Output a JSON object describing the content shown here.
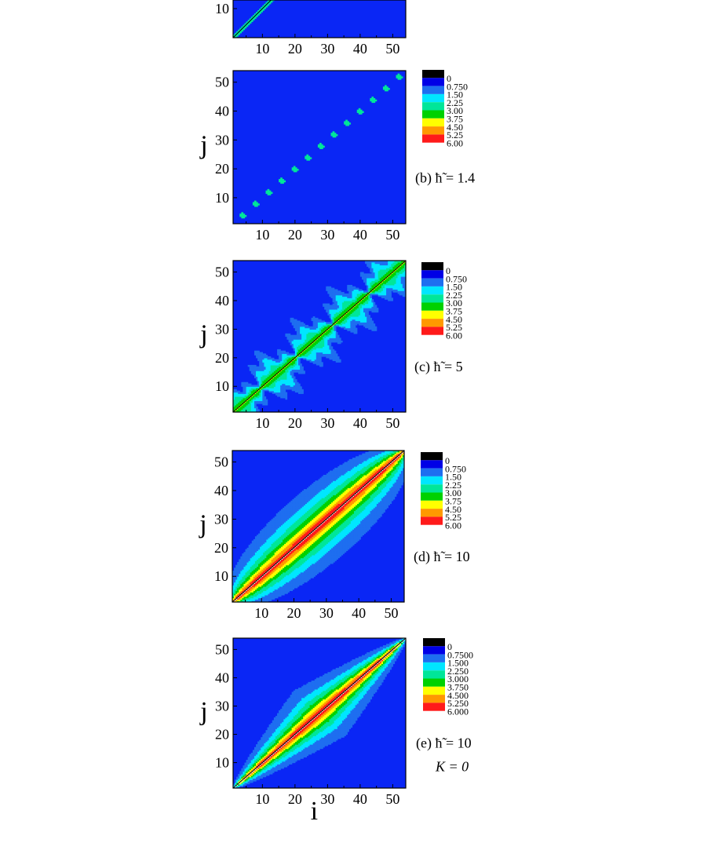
{
  "chart_data": [
    {
      "type": "heatmap",
      "xlabel": "",
      "ylabel": "",
      "x_ticks": [
        "10",
        "20",
        "30",
        "40",
        "50"
      ],
      "y_ticks": [
        "10"
      ],
      "xlim": [
        1,
        54
      ],
      "ylim": [
        1,
        54
      ],
      "legend": null,
      "pattern": "diagonal-narrow",
      "caption": ""
    },
    {
      "type": "heatmap",
      "xlabel": "",
      "ylabel": "j",
      "x_ticks": [
        "10",
        "20",
        "30",
        "40",
        "50"
      ],
      "y_ticks": [
        "10",
        "20",
        "30",
        "40",
        "50"
      ],
      "xlim": [
        1,
        54
      ],
      "ylim": [
        1,
        54
      ],
      "legend": [
        "0",
        "0.750",
        "1.50",
        "2.25",
        "3.00",
        "3.75",
        "4.50",
        "5.25",
        "6.00"
      ],
      "pattern": "sparse-diagonal-dots",
      "caption": "(b) ħ̃ = 1.4"
    },
    {
      "type": "heatmap",
      "xlabel": "",
      "ylabel": "j",
      "x_ticks": [
        "10",
        "20",
        "30",
        "40",
        "50"
      ],
      "y_ticks": [
        "10",
        "20",
        "30",
        "40",
        "50"
      ],
      "xlim": [
        1,
        54
      ],
      "ylim": [
        1,
        54
      ],
      "legend": [
        "0",
        "0.750",
        "1.50",
        "2.25",
        "3.00",
        "3.75",
        "4.50",
        "5.25",
        "6.00"
      ],
      "pattern": "diagonal-blotchy-band",
      "caption": "(c) ħ̃ = 5"
    },
    {
      "type": "heatmap",
      "xlabel": "",
      "ylabel": "j",
      "x_ticks": [
        "10",
        "20",
        "30",
        "40",
        "50"
      ],
      "y_ticks": [
        "10",
        "20",
        "30",
        "40",
        "50"
      ],
      "xlim": [
        1,
        54
      ],
      "ylim": [
        1,
        54
      ],
      "legend": [
        "0",
        "0.750",
        "1.50",
        "2.25",
        "3.00",
        "3.75",
        "4.50",
        "5.25",
        "6.00"
      ],
      "pattern": "smooth-lens",
      "caption": "(d) ħ̃ = 10"
    },
    {
      "type": "heatmap",
      "xlabel": "i",
      "ylabel": "j",
      "x_ticks": [
        "10",
        "20",
        "30",
        "40",
        "50"
      ],
      "y_ticks": [
        "10",
        "20",
        "30",
        "40",
        "50"
      ],
      "xlim": [
        1,
        54
      ],
      "ylim": [
        1,
        54
      ],
      "legend": [
        "0",
        "0.7500",
        "1.500",
        "2.250",
        "3.000",
        "3.750",
        "4.500",
        "5.250",
        "6.000"
      ],
      "pattern": "smooth-lens-sigmoid",
      "caption": "(e) ħ̃ = 10",
      "caption2": "K = 0"
    }
  ],
  "colors": {
    "levels": [
      "#000000",
      "#0000e6",
      "#1e6ef0",
      "#00e6ff",
      "#00e699",
      "#00d100",
      "#ffff00",
      "#ff9900",
      "#ff1a1a"
    ],
    "background": "#0a26f5",
    "peak": "#ffffff",
    "edge": "#000000"
  }
}
